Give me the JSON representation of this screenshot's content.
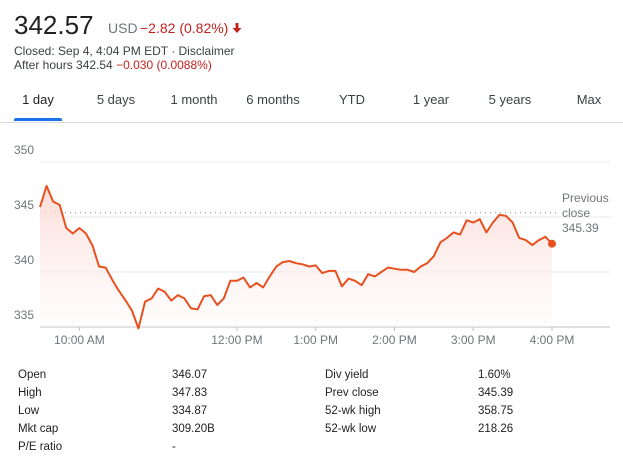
{
  "header": {
    "price": "342.57",
    "currency": "USD",
    "change": "−2.82 (0.82%)",
    "closed": "Closed: Sep 4, 4:04 PM EDT · Disclaimer",
    "after_hours_label": "After hours 342.54",
    "after_hours_change": "−0.030 (0.0088%)"
  },
  "tabs": {
    "items": [
      "1 day",
      "5 days",
      "1 month",
      "6 months",
      "YTD",
      "1 year",
      "5 years",
      "Max"
    ],
    "selected": 0
  },
  "chart_data": {
    "type": "line",
    "color": "#e8501f",
    "x": [
      "9:30 AM",
      "9:35 AM",
      "9:40 AM",
      "9:45 AM",
      "9:50 AM",
      "9:55 AM",
      "10:00 AM",
      "10:05 AM",
      "10:10 AM",
      "10:15 AM",
      "10:20 AM",
      "10:25 AM",
      "10:30 AM",
      "10:35 AM",
      "10:40 AM",
      "10:45 AM",
      "10:50 AM",
      "10:55 AM",
      "11:00 AM",
      "11:05 AM",
      "11:10 AM",
      "11:15 AM",
      "11:20 AM",
      "11:25 AM",
      "11:30 AM",
      "11:35 AM",
      "11:40 AM",
      "11:45 AM",
      "11:50 AM",
      "11:55 AM",
      "12:00 PM",
      "12:05 PM",
      "12:10 PM",
      "12:15 PM",
      "12:20 PM",
      "12:25 PM",
      "12:30 PM",
      "12:35 PM",
      "12:40 PM",
      "12:45 PM",
      "12:50 PM",
      "12:55 PM",
      "1:00 PM",
      "1:05 PM",
      "1:10 PM",
      "1:15 PM",
      "1:20 PM",
      "1:25 PM",
      "1:30 PM",
      "1:35 PM",
      "1:40 PM",
      "1:45 PM",
      "1:50 PM",
      "1:55 PM",
      "2:00 PM",
      "2:05 PM",
      "2:10 PM",
      "2:15 PM",
      "2:20 PM",
      "2:25 PM",
      "2:30 PM",
      "2:35 PM",
      "2:40 PM",
      "2:45 PM",
      "2:50 PM",
      "2:55 PM",
      "3:00 PM",
      "3:05 PM",
      "3:10 PM",
      "3:15 PM",
      "3:20 PM",
      "3:25 PM",
      "3:30 PM",
      "3:35 PM",
      "3:40 PM",
      "3:45 PM",
      "3:50 PM",
      "3:55 PM",
      "4:00 PM"
    ],
    "values": [
      345.9,
      347.83,
      346.4,
      346.1,
      344.0,
      343.5,
      344.0,
      343.5,
      342.4,
      340.5,
      340.4,
      339.3,
      338.3,
      337.45,
      336.5,
      334.87,
      337.3,
      337.6,
      338.5,
      338.2,
      337.4,
      337.9,
      337.6,
      336.7,
      336.6,
      337.8,
      337.9,
      337.0,
      337.6,
      339.2,
      339.2,
      339.5,
      338.6,
      339.0,
      338.6,
      339.6,
      340.5,
      340.9,
      341.0,
      340.8,
      340.7,
      340.5,
      340.6,
      339.9,
      340.1,
      340.1,
      338.7,
      339.4,
      339.2,
      338.8,
      339.8,
      339.6,
      340.0,
      340.4,
      340.3,
      340.2,
      340.2,
      340.0,
      340.5,
      340.8,
      341.45,
      342.7,
      343.1,
      343.6,
      343.4,
      344.7,
      344.5,
      344.8,
      343.6,
      344.5,
      345.2,
      345.1,
      344.5,
      343.1,
      342.9,
      342.45,
      342.9,
      343.2,
      342.57
    ],
    "ylim": [
      335,
      351
    ],
    "yticks": [
      335,
      340,
      345,
      350
    ],
    "grid": true,
    "xticks": [
      "10:00 AM",
      "12:00 PM",
      "1:00 PM",
      "2:00 PM",
      "3:00 PM",
      "4:00 PM"
    ],
    "reference": {
      "label": "Previous close",
      "value": 345.39
    }
  },
  "stats": {
    "rows": [
      [
        "Open",
        "346.07",
        "Div yield",
        "1.60%"
      ],
      [
        "High",
        "347.83",
        "Prev close",
        "345.39"
      ],
      [
        "Low",
        "334.87",
        "52-wk high",
        "358.75"
      ],
      [
        "Mkt cap",
        "309.20B",
        "52-wk low",
        "218.26"
      ],
      [
        "P/E ratio",
        "-"
      ]
    ]
  }
}
